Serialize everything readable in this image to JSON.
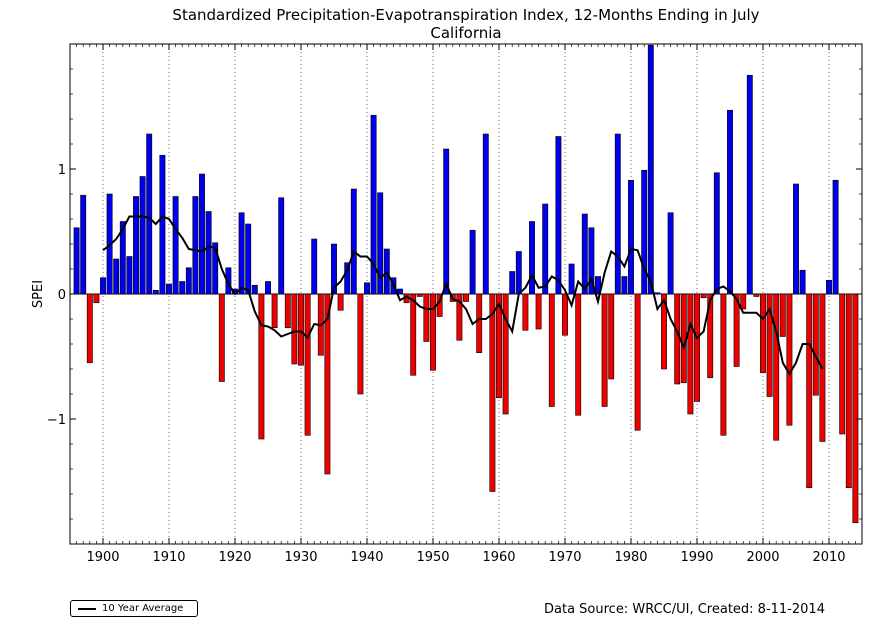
{
  "chart_data": {
    "type": "bar",
    "title": "Standardized Precipitation-Evapotranspiration Index, 12-Months Ending in July",
    "subtitle": "California",
    "ylabel": "SPEI",
    "xlabel": "",
    "xlim": [
      1895,
      2015
    ],
    "ylim": [
      -2.0,
      2.0
    ],
    "xticks": [
      1900,
      1910,
      1920,
      1930,
      1940,
      1950,
      1960,
      1970,
      1980,
      1990,
      2000,
      2010
    ],
    "yticks": [
      -1,
      0,
      1
    ],
    "ytick_labels": [
      "−1",
      "0",
      "1"
    ],
    "grid": "vertical dotted",
    "positive_color": "#0000ee",
    "negative_color": "#ee0000",
    "years": [
      1896,
      1897,
      1898,
      1899,
      1900,
      1901,
      1902,
      1903,
      1904,
      1905,
      1906,
      1907,
      1908,
      1909,
      1910,
      1911,
      1912,
      1913,
      1914,
      1915,
      1916,
      1917,
      1918,
      1919,
      1920,
      1921,
      1922,
      1923,
      1924,
      1925,
      1926,
      1927,
      1928,
      1929,
      1930,
      1931,
      1932,
      1933,
      1934,
      1935,
      1936,
      1937,
      1938,
      1939,
      1940,
      1941,
      1942,
      1943,
      1944,
      1945,
      1946,
      1947,
      1948,
      1949,
      1950,
      1951,
      1952,
      1953,
      1954,
      1955,
      1956,
      1957,
      1958,
      1959,
      1960,
      1961,
      1962,
      1963,
      1964,
      1965,
      1966,
      1967,
      1968,
      1969,
      1970,
      1971,
      1972,
      1973,
      1974,
      1975,
      1976,
      1977,
      1978,
      1979,
      1980,
      1981,
      1982,
      1983,
      1984,
      1985,
      1986,
      1987,
      1988,
      1989,
      1990,
      1991,
      1992,
      1993,
      1994,
      1995,
      1996,
      1997,
      1998,
      1999,
      2000,
      2001,
      2002,
      2003,
      2004,
      2005,
      2006,
      2007,
      2008,
      2009,
      2010,
      2011,
      2012,
      2013,
      2014
    ],
    "values": [
      0.53,
      0.79,
      -0.55,
      -0.07,
      0.13,
      0.8,
      0.28,
      0.58,
      0.3,
      0.78,
      0.94,
      1.28,
      0.03,
      1.11,
      0.08,
      0.78,
      0.1,
      0.21,
      0.78,
      0.96,
      0.66,
      0.41,
      -0.7,
      0.21,
      0.04,
      0.65,
      0.56,
      0.07,
      -1.16,
      0.1,
      -0.27,
      0.77,
      -0.27,
      -0.56,
      -0.57,
      -1.13,
      0.44,
      -0.49,
      -1.44,
      0.4,
      -0.13,
      0.25,
      0.84,
      -0.8,
      0.09,
      1.43,
      0.81,
      0.36,
      0.13,
      0.04,
      -0.07,
      -0.65,
      -0.02,
      -0.38,
      -0.61,
      -0.18,
      1.16,
      -0.06,
      -0.37,
      -0.06,
      0.51,
      -0.47,
      1.28,
      -1.58,
      -0.83,
      -0.96,
      0.18,
      0.34,
      -0.29,
      0.58,
      -0.28,
      0.72,
      -0.9,
      1.26,
      -0.33,
      0.24,
      -0.97,
      0.64,
      0.53,
      0.14,
      -0.9,
      -0.68,
      1.28,
      0.14,
      0.91,
      -1.09,
      0.99,
      1.99,
      0.01,
      -0.6,
      0.65,
      -0.72,
      -0.71,
      -0.96,
      -0.86,
      -0.03,
      -0.67,
      0.97,
      -1.13,
      1.47,
      -0.58,
      -0.12,
      1.75,
      -0.02,
      -0.63,
      -0.82,
      -1.17,
      -0.34,
      -1.05,
      0.88,
      0.19,
      -1.55,
      -0.81,
      -1.18,
      0.11,
      0.91,
      -1.12,
      -1.55,
      -1.83
    ],
    "series": [
      {
        "name": "10 Year Average",
        "x": [
          1900,
          1901,
          1902,
          1903,
          1904,
          1905,
          1906,
          1907,
          1908,
          1909,
          1910,
          1911,
          1912,
          1913,
          1914,
          1915,
          1916,
          1917,
          1918,
          1919,
          1920,
          1921,
          1922,
          1923,
          1924,
          1925,
          1926,
          1927,
          1928,
          1929,
          1930,
          1931,
          1932,
          1933,
          1934,
          1935,
          1936,
          1937,
          1938,
          1939,
          1940,
          1941,
          1942,
          1943,
          1944,
          1945,
          1946,
          1947,
          1948,
          1949,
          1950,
          1951,
          1952,
          1953,
          1954,
          1955,
          1956,
          1957,
          1958,
          1959,
          1960,
          1961,
          1962,
          1963,
          1964,
          1965,
          1966,
          1967,
          1968,
          1969,
          1970,
          1971,
          1972,
          1973,
          1974,
          1975,
          1976,
          1977,
          1978,
          1979,
          1980,
          1981,
          1982,
          1983,
          1984,
          1985,
          1986,
          1987,
          1988,
          1989,
          1990,
          1991,
          1992,
          1993,
          1994,
          1995,
          1996,
          1997,
          1998,
          1999,
          2000,
          2001,
          2002,
          2003,
          2004,
          2005,
          2006,
          2007,
          2008,
          2009
        ],
        "values": [
          0.35,
          0.39,
          0.44,
          0.52,
          0.62,
          0.62,
          0.62,
          0.61,
          0.56,
          0.62,
          0.6,
          0.52,
          0.45,
          0.36,
          0.35,
          0.34,
          0.38,
          0.37,
          0.2,
          0.08,
          0.0,
          0.05,
          0.03,
          -0.14,
          -0.25,
          -0.26,
          -0.29,
          -0.34,
          -0.32,
          -0.3,
          -0.3,
          -0.35,
          -0.24,
          -0.25,
          -0.2,
          0.05,
          0.1,
          0.19,
          0.34,
          0.3,
          0.3,
          0.24,
          0.13,
          0.17,
          0.08,
          -0.05,
          -0.02,
          -0.05,
          -0.1,
          -0.12,
          -0.12,
          -0.06,
          0.08,
          -0.04,
          -0.06,
          -0.12,
          -0.24,
          -0.2,
          -0.2,
          -0.16,
          -0.08,
          -0.2,
          -0.3,
          0.0,
          0.05,
          0.15,
          0.05,
          0.06,
          0.14,
          0.11,
          0.03,
          -0.09,
          0.1,
          0.04,
          0.12,
          -0.06,
          0.17,
          0.34,
          0.3,
          0.22,
          0.36,
          0.35,
          0.2,
          0.1,
          -0.12,
          -0.05,
          -0.2,
          -0.3,
          -0.43,
          -0.24,
          -0.35,
          -0.3,
          -0.05,
          0.04,
          0.06,
          0.02,
          -0.04,
          -0.15,
          -0.15,
          -0.15,
          -0.2,
          -0.12,
          -0.3,
          -0.55,
          -0.64,
          -0.55,
          -0.4,
          -0.4,
          -0.5,
          -0.6
        ],
        "color": "#000000"
      }
    ]
  },
  "legend": {
    "label": "10 Year Average",
    "placement": "bottom-left"
  },
  "footer": {
    "source": "Data Source: WRCC/UI, Created: 8-11-2014"
  }
}
